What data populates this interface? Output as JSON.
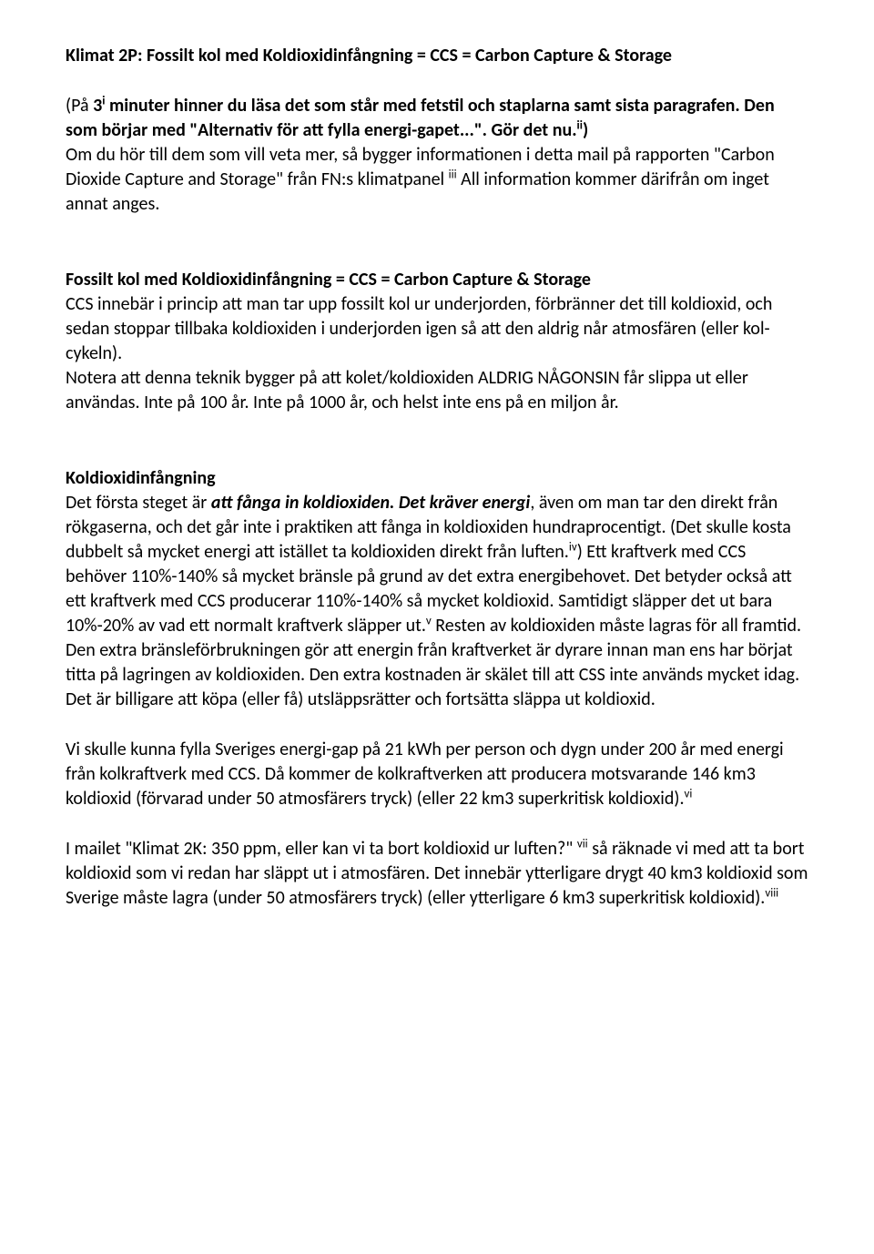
{
  "title": "Klimat 2P: Fossilt kol med Koldioxidinfångning = CCS = Carbon Capture & Storage",
  "intro": {
    "t1": "(På ",
    "t2": "3",
    "sup1": "i",
    "t3": " minuter hinner du läsa det som står med fetstil och staplarna samt sista paragrafen. Den som börjar med \"Alternativ för att fylla energi-gapet...\". Gör det nu.",
    "sup2": "ii",
    "t4": ")",
    "t5": "Om du hör till dem som vill veta mer, så bygger informationen i detta mail på rapporten \"Carbon Dioxide Capture and Storage\" från FN:s klimatpanel ",
    "sup3": "iii",
    "t6": " All information kommer därifrån om inget annat anges."
  },
  "sec1": {
    "h": "Fossilt kol med Koldioxidinfångning = CCS = Carbon Capture & Storage",
    "p1": "CCS innebär i princip att man tar upp fossilt kol ur underjorden, förbränner det till koldioxid, och sedan stoppar tillbaka koldioxiden i underjorden igen så att den aldrig når atmosfären (eller kol-cykeln).",
    "p2": "Notera att denna teknik bygger på att kolet/koldioxiden ALDRIG NÅGONSIN får slippa ut eller användas. Inte på 100 år. Inte på 1000 år, och helst inte ens på en miljon år."
  },
  "sec2": {
    "h": "Koldioxidinfångning",
    "p1a": "Det första steget är ",
    "p1b": "att fånga in koldioxiden. Det kräver energi",
    "p1c": ", även om man tar den direkt från rökgaserna, och det går inte i praktiken att fånga in koldioxiden hundraprocentigt. ",
    "p1d": "(Det skulle kosta dubbelt så mycket energi att istället ta koldioxiden direkt från luften.",
    "sup4": "iv",
    "p1e": ") Ett kraftverk med CCS behöver 110%-140% så mycket bränsle på grund av det extra energibehovet. Det betyder också att ett kraftverk med CCS producerar 110%-140% så mycket koldioxid.",
    "p1f": " Samtidigt släpper det ut bara 10%-20% av vad ett normalt kraftverk släpper ut.",
    "sup5": "v",
    "p1g": " Resten av koldioxiden måste lagras för all framtid.",
    "p2a": "Den extra bränsleförbrukningen gör att energin från kraftverket är dyrare innan man ens har börjat titta på lagringen av koldioxiden. ",
    "p2b": "Den extra kostnaden är skälet till att CSS inte används mycket idag. Det är billigare att köpa (eller få) utsläppsrätter och fortsätta släppa ut koldioxid."
  },
  "sec3": {
    "p1a": "Vi skulle kunna fylla Sveriges energi-gap på 21 kWh per person och dygn under 200 år med energi från kolkraftverk med CCS. ",
    "p1b": "Då kommer de kolkraftverken att producera motsvarande 146 km3 koldioxid (förvarad under 50 atmosfärers tryck) (eller 22 km3 superkritisk koldioxid).",
    "sup6": "vi"
  },
  "sec4": {
    "p1a": "I mailet \"Klimat 2K: 350 ppm, eller kan vi ta bort koldioxid ur luften?\" ",
    "sup7": "vii",
    "p1b": " så räknade vi med att ta bort koldioxid som vi redan har släppt ut i atmosfären. ",
    "p1c": "Det innebär ytterligare drygt 40 km3 koldioxid som Sverige måste lagra (under 50 atmosfärers tryck) (eller ytterligare 6 km3 superkritisk koldioxid).",
    "sup8": "viii"
  }
}
